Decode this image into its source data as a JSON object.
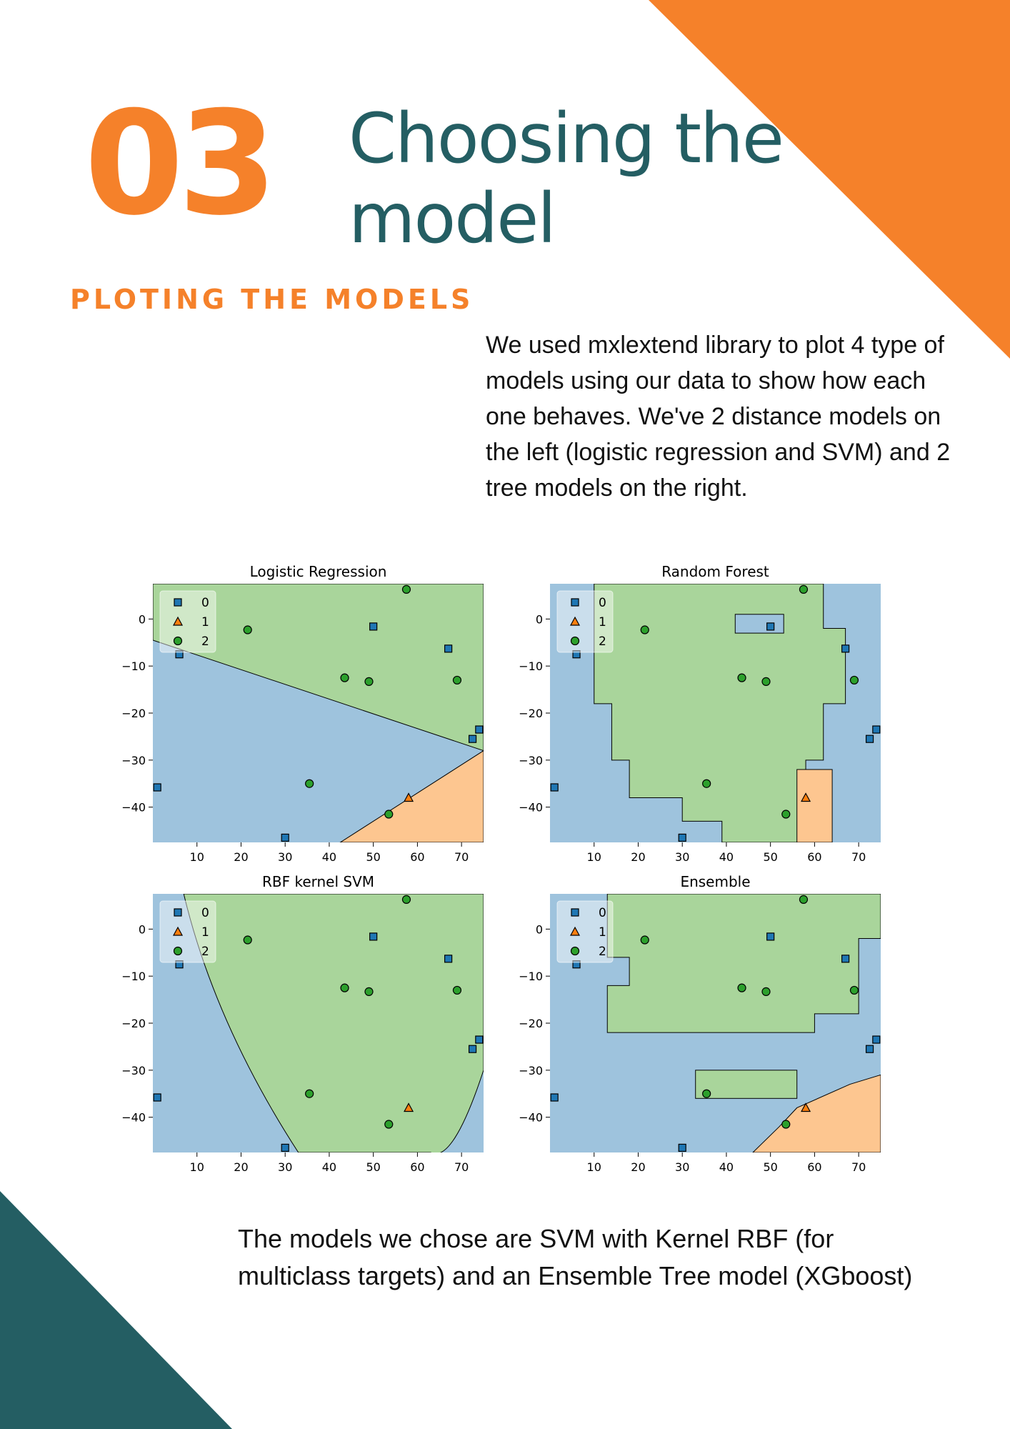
{
  "theme": {
    "orange": "#f5812a",
    "teal": "#245e63",
    "blue": "#9ec3dd",
    "green": "#a9d59b",
    "peach": "#fdc690",
    "marker_blue": "#1f77b4",
    "marker_orange": "#ff7f0e",
    "marker_green": "#2ca02c"
  },
  "page": {
    "number": "03",
    "title_line1": "Choosing the",
    "title_line2": "model",
    "subtitle": "PLOTING THE MODELS",
    "intro": "We used mxlextend library to plot 4 type of models using our data to show how each one behaves. We've 2 distance models on the left (logistic regression and SVM) and 2 tree models on the right.",
    "conclusion": "The models we chose are SVM with Kernel RBF (for multiclass targets) and an Ensemble Tree model (XGboost)"
  },
  "chart_data": [
    {
      "type": "scatter",
      "title": "Logistic Regression",
      "xlim": [
        0,
        75
      ],
      "ylim": [
        -47.5,
        7.5
      ],
      "xticks": [
        10,
        20,
        30,
        40,
        50,
        60,
        70
      ],
      "yticks": [
        0,
        -10,
        -20,
        -30,
        -40
      ],
      "legend": {
        "position": "top-left",
        "entries": [
          "0",
          "1",
          "2"
        ]
      },
      "series": [
        {
          "name": "0",
          "marker": "square",
          "color": "#1f77b4",
          "points": [
            [
              6,
              -7.5
            ],
            [
              50,
              -1.6
            ],
            [
              67,
              -6.3
            ],
            [
              72.5,
              -25.5
            ],
            [
              74,
              -23.5
            ],
            [
              1,
              -35.8
            ],
            [
              30,
              -46.5
            ]
          ]
        },
        {
          "name": "1",
          "marker": "triangle",
          "color": "#ff7f0e",
          "points": [
            [
              58,
              -38
            ]
          ]
        },
        {
          "name": "2",
          "marker": "circle",
          "color": "#2ca02c",
          "points": [
            [
              57.5,
              6.3
            ],
            [
              21.5,
              -2.3
            ],
            [
              43.5,
              -12.5
            ],
            [
              49,
              -13.3
            ],
            [
              69,
              -13
            ],
            [
              35.5,
              -35
            ],
            [
              53.5,
              -41.5
            ]
          ]
        }
      ]
    },
    {
      "type": "scatter",
      "title": "Random Forest",
      "xlim": [
        0,
        75
      ],
      "ylim": [
        -47.5,
        7.5
      ],
      "xticks": [
        10,
        20,
        30,
        40,
        50,
        60,
        70
      ],
      "yticks": [
        0,
        -10,
        -20,
        -30,
        -40
      ],
      "legend": {
        "position": "top-left",
        "entries": [
          "0",
          "1",
          "2"
        ]
      },
      "series": [
        {
          "name": "0",
          "marker": "square",
          "color": "#1f77b4",
          "points": [
            [
              6,
              -7.5
            ],
            [
              50,
              -1.6
            ],
            [
              67,
              -6.3
            ],
            [
              72.5,
              -25.5
            ],
            [
              74,
              -23.5
            ],
            [
              1,
              -35.8
            ],
            [
              30,
              -46.5
            ]
          ]
        },
        {
          "name": "1",
          "marker": "triangle",
          "color": "#ff7f0e",
          "points": [
            [
              58,
              -38
            ]
          ]
        },
        {
          "name": "2",
          "marker": "circle",
          "color": "#2ca02c",
          "points": [
            [
              57.5,
              6.3
            ],
            [
              21.5,
              -2.3
            ],
            [
              43.5,
              -12.5
            ],
            [
              49,
              -13.3
            ],
            [
              69,
              -13
            ],
            [
              35.5,
              -35
            ],
            [
              53.5,
              -41.5
            ]
          ]
        }
      ]
    },
    {
      "type": "scatter",
      "title": "RBF kernel SVM",
      "xlim": [
        0,
        75
      ],
      "ylim": [
        -47.5,
        7.5
      ],
      "xticks": [
        10,
        20,
        30,
        40,
        50,
        60,
        70
      ],
      "yticks": [
        0,
        -10,
        -20,
        -30,
        -40
      ],
      "legend": {
        "position": "top-left",
        "entries": [
          "0",
          "1",
          "2"
        ]
      },
      "series": [
        {
          "name": "0",
          "marker": "square",
          "color": "#1f77b4",
          "points": [
            [
              6,
              -7.5
            ],
            [
              50,
              -1.6
            ],
            [
              67,
              -6.3
            ],
            [
              72.5,
              -25.5
            ],
            [
              74,
              -23.5
            ],
            [
              1,
              -35.8
            ],
            [
              30,
              -46.5
            ]
          ]
        },
        {
          "name": "1",
          "marker": "triangle",
          "color": "#ff7f0e",
          "points": [
            [
              58,
              -38
            ]
          ]
        },
        {
          "name": "2",
          "marker": "circle",
          "color": "#2ca02c",
          "points": [
            [
              57.5,
              6.3
            ],
            [
              21.5,
              -2.3
            ],
            [
              43.5,
              -12.5
            ],
            [
              49,
              -13.3
            ],
            [
              69,
              -13
            ],
            [
              35.5,
              -35
            ],
            [
              53.5,
              -41.5
            ]
          ]
        }
      ]
    },
    {
      "type": "scatter",
      "title": "Ensemble",
      "xlim": [
        0,
        75
      ],
      "ylim": [
        -47.5,
        7.5
      ],
      "xticks": [
        10,
        20,
        30,
        40,
        50,
        60,
        70
      ],
      "yticks": [
        0,
        -10,
        -20,
        -30,
        -40
      ],
      "legend": {
        "position": "top-left",
        "entries": [
          "0",
          "1",
          "2"
        ]
      },
      "series": [
        {
          "name": "0",
          "marker": "square",
          "color": "#1f77b4",
          "points": [
            [
              6,
              -7.5
            ],
            [
              50,
              -1.6
            ],
            [
              67,
              -6.3
            ],
            [
              72.5,
              -25.5
            ],
            [
              74,
              -23.5
            ],
            [
              1,
              -35.8
            ],
            [
              30,
              -46.5
            ]
          ]
        },
        {
          "name": "1",
          "marker": "triangle",
          "color": "#ff7f0e",
          "points": [
            [
              58,
              -38
            ]
          ]
        },
        {
          "name": "2",
          "marker": "circle",
          "color": "#2ca02c",
          "points": [
            [
              57.5,
              6.3
            ],
            [
              21.5,
              -2.3
            ],
            [
              43.5,
              -12.5
            ],
            [
              49,
              -13.3
            ],
            [
              69,
              -13
            ],
            [
              35.5,
              -35
            ],
            [
              53.5,
              -41.5
            ]
          ]
        }
      ]
    }
  ]
}
